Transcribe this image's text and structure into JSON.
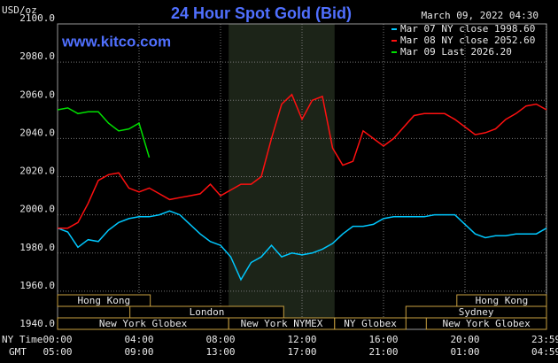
{
  "chart_data": {
    "type": "line",
    "title": "24 Hour Spot Gold (Bid)",
    "unit_label": "USD/oz",
    "site": "www.kitco.com",
    "timestamp": "March 09, 2022 04:30",
    "x_row_label": "NY Time",
    "x2_row_label": "GMT",
    "x": [
      0,
      0.5,
      1,
      1.5,
      2,
      2.5,
      3,
      3.5,
      4,
      4.5,
      5,
      5.5,
      6,
      6.5,
      7,
      7.5,
      8,
      8.5,
      9,
      9.5,
      10,
      10.5,
      11,
      11.5,
      12,
      12.5,
      13,
      13.5,
      14,
      14.5,
      15,
      15.5,
      16,
      16.5,
      17,
      17.5,
      18,
      18.5,
      19,
      19.5,
      20,
      20.5,
      21,
      21.5,
      22,
      22.5,
      23,
      23.5,
      24
    ],
    "series": [
      {
        "name": "Mar 07 NY close 1998.60",
        "color": "#00c8ff",
        "values": [
          1993,
          1991,
          1983,
          1987,
          1986,
          1992,
          1996,
          1998,
          1999,
          1999,
          2000,
          2002,
          2000,
          1995,
          1990,
          1986,
          1984,
          1978,
          1966,
          1975,
          1978,
          1984,
          1978,
          1980,
          1979,
          1980,
          1982,
          1985,
          1990,
          1994,
          1994,
          1995,
          1998,
          1999,
          1999,
          1999,
          1999,
          2000,
          2000,
          2000,
          1995,
          1990,
          1988,
          1989,
          1989,
          1990,
          1990,
          1990,
          1993
        ]
      },
      {
        "name": "Mar 08 NY close 2052.60",
        "color": "#ff1010",
        "values": [
          1993,
          1993,
          1996,
          2006,
          2018,
          2021,
          2022,
          2014,
          2012,
          2014,
          2011,
          2008,
          2009,
          2010,
          2011,
          2016,
          2010,
          2013,
          2016,
          2016,
          2020,
          2040,
          2058,
          2063,
          2050,
          2060,
          2062,
          2035,
          2026,
          2028,
          2044,
          2040,
          2036,
          2040,
          2046,
          2052,
          2053,
          2053,
          2053,
          2050,
          2046,
          2042,
          2043,
          2045,
          2050,
          2053,
          2057,
          2058,
          2055
        ]
      },
      {
        "name": "Mar 09 Last 2026.20",
        "color": "#00e000",
        "values": [
          2055,
          2056,
          2053,
          2054,
          2054,
          2048,
          2044,
          2045,
          2048,
          2030,
          null,
          null,
          null,
          null,
          null,
          null,
          null,
          null,
          null,
          null,
          null,
          null,
          null,
          null,
          null,
          null,
          null,
          null,
          null,
          null,
          null,
          null,
          null,
          null,
          null,
          null,
          null,
          null,
          null,
          null,
          null,
          null,
          null,
          null,
          null,
          null,
          null,
          null,
          null
        ]
      }
    ],
    "xlim": [
      0,
      24
    ],
    "ylim": [
      1940,
      2100
    ],
    "yticks": [
      {
        "value": 1940,
        "label": "1940.0"
      },
      {
        "value": 1960,
        "label": "1960.0"
      },
      {
        "value": 1980,
        "label": "1980.0"
      },
      {
        "value": 2000,
        "label": "2000.0"
      },
      {
        "value": 2020,
        "label": "2020.0"
      },
      {
        "value": 2040,
        "label": "2040.0"
      },
      {
        "value": 2060,
        "label": "2060.0"
      },
      {
        "value": 2080,
        "label": "2080.0"
      },
      {
        "value": 2100,
        "label": "2100.0"
      }
    ],
    "xticks": [
      {
        "value": 0,
        "label": "00:00"
      },
      {
        "value": 4,
        "label": "04:00"
      },
      {
        "value": 8,
        "label": "08:00"
      },
      {
        "value": 12,
        "label": "12:00"
      },
      {
        "value": 16,
        "label": "16:00"
      },
      {
        "value": 20,
        "label": "20:00"
      },
      {
        "value": 23.98,
        "label": "23:59"
      }
    ],
    "x2ticks": [
      {
        "value": 0,
        "label": "05:00"
      },
      {
        "value": 4,
        "label": "09:00"
      },
      {
        "value": 8,
        "label": "13:00"
      },
      {
        "value": 12,
        "label": "17:00"
      },
      {
        "value": 16,
        "label": "21:00"
      },
      {
        "value": 20,
        "label": "01:00"
      },
      {
        "value": 23.98,
        "label": "04:59"
      }
    ],
    "shaded_span": [
      8.4,
      13.6
    ],
    "sessions": [
      {
        "name": "Hong Kong",
        "start": 0,
        "end": 4.55,
        "row": 0
      },
      {
        "name": "Hong Kong",
        "start": 19.6,
        "end": 24,
        "row": 0
      },
      {
        "name": "London",
        "start": 3.55,
        "end": 11.1,
        "row": 1
      },
      {
        "name": "Sydney",
        "start": 17.1,
        "end": 24,
        "row": 1
      },
      {
        "name": "New York Globex",
        "start": 0,
        "end": 8.4,
        "row": 2
      },
      {
        "name": "New York NYMEX",
        "start": 8.4,
        "end": 13.6,
        "row": 2
      },
      {
        "name": "NY Globex",
        "start": 13.6,
        "end": 17.1,
        "row": 2
      },
      {
        "name": "New York Globex",
        "start": 18.1,
        "end": 24,
        "row": 2
      }
    ],
    "grid": true
  }
}
